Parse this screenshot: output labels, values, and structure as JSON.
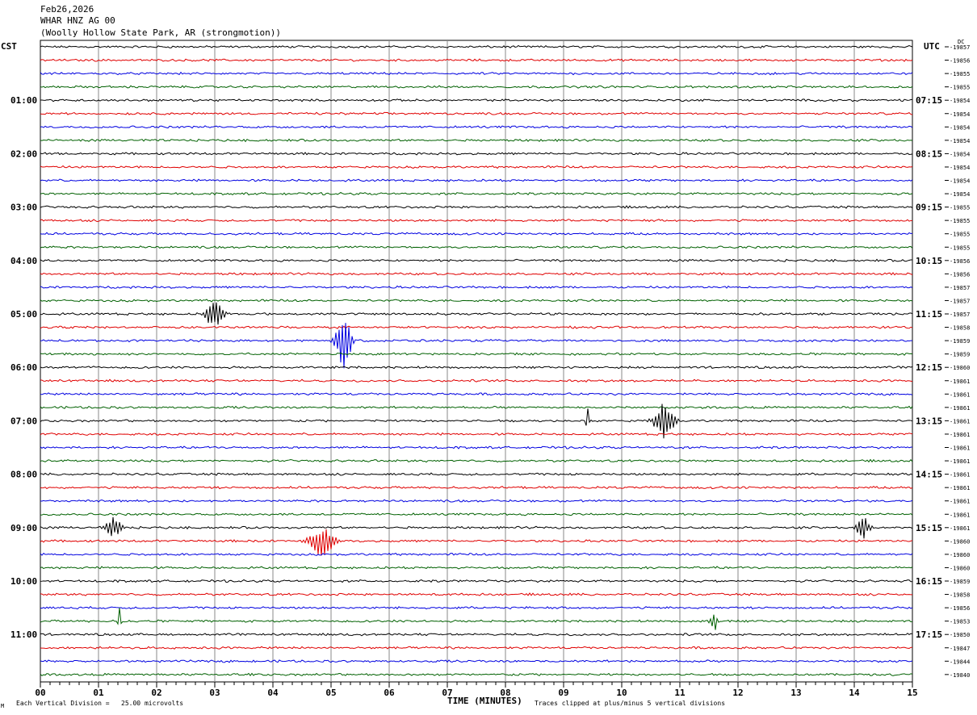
{
  "header": {
    "date": "Feb26,2026",
    "station": "WHAR HNZ AG 00",
    "location": "(Woolly Hollow State Park, AR (strongmotion))"
  },
  "tz_left": "CST",
  "tz_right": "UTC",
  "dc_label": "DC",
  "footer": {
    "scale_text": "Each Vertical Division =   25.00 microvolts",
    "xlabel": "TIME (MINUTES)",
    "clip_text": "Traces clipped at plus/minus 5 vertical divisions",
    "corner_mark": "M"
  },
  "chart_data": {
    "type": "line",
    "title": "",
    "xlabel": "TIME (MINUTES)",
    "xlim": [
      0,
      15
    ],
    "x_ticks": [
      "00",
      "01",
      "02",
      "03",
      "04",
      "05",
      "06",
      "07",
      "08",
      "09",
      "10",
      "11",
      "12",
      "13",
      "14",
      "15"
    ],
    "grid": true,
    "trace_colors": [
      "#000000",
      "#e00000",
      "#0000e0",
      "#006000"
    ],
    "left_hour_labels": [
      "01:00",
      "02:00",
      "03:00",
      "04:00",
      "05:00",
      "06:00",
      "07:00",
      "08:00",
      "09:00",
      "10:00",
      "11:00"
    ],
    "right_hour_labels": [
      "07:15",
      "08:15",
      "09:15",
      "10:15",
      "11:15",
      "12:15",
      "13:15",
      "14:15",
      "15:15",
      "16:15",
      "17:15"
    ],
    "hour_label_first_trace": 4,
    "traces_per_hour": 4,
    "dc_offsets": [
      -19857,
      -19856,
      -19855,
      -19855,
      -19854,
      -19854,
      -19854,
      -19854,
      -19854,
      -19854,
      -19854,
      -19854,
      -19855,
      -19855,
      -19855,
      -19855,
      -19856,
      -19856,
      -19857,
      -19857,
      -19857,
      -19858,
      -19859,
      -19859,
      -19860,
      -19861,
      -19861,
      -19861,
      -19861,
      -19861,
      -19861,
      -19861,
      -19861,
      -19861,
      -19861,
      -19861,
      -19861,
      -19860,
      -19860,
      -19860,
      -19859,
      -19858,
      -19856,
      -19853,
      -19850,
      -19847,
      -19844,
      -19840
    ],
    "noise_amplitude": 0.12,
    "events": [
      {
        "trace": 20,
        "minute": 2.92,
        "duration": 0.35,
        "amplitude": 0.45
      },
      {
        "trace": 22,
        "minute": 5.15,
        "duration": 0.3,
        "amplitude": 0.9
      },
      {
        "trace": 28,
        "minute": 9.4,
        "duration": 0.05,
        "amplitude": 0.5
      },
      {
        "trace": 28,
        "minute": 10.65,
        "duration": 0.4,
        "amplitude": 0.6
      },
      {
        "trace": 36,
        "minute": 1.2,
        "duration": 0.3,
        "amplitude": 0.3
      },
      {
        "trace": 36,
        "minute": 14.1,
        "duration": 0.25,
        "amplitude": 0.35
      },
      {
        "trace": 37,
        "minute": 4.75,
        "duration": 0.5,
        "amplitude": 0.45
      },
      {
        "trace": 43,
        "minute": 1.35,
        "duration": 0.05,
        "amplitude": 0.5
      },
      {
        "trace": 43,
        "minute": 11.55,
        "duration": 0.15,
        "amplitude": 0.35
      }
    ]
  }
}
